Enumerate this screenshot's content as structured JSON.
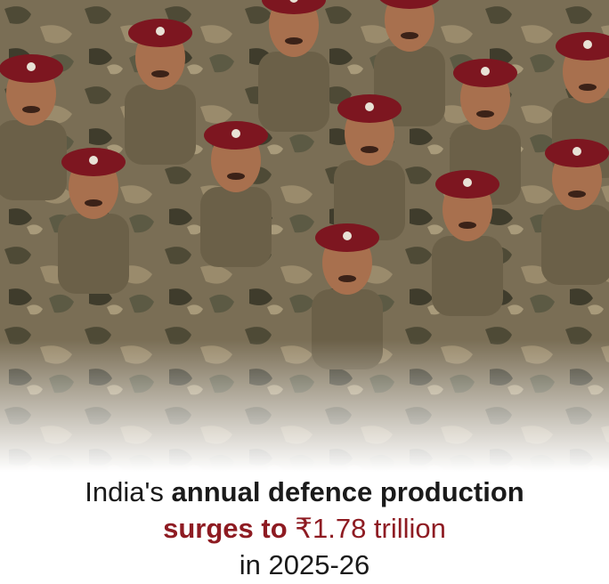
{
  "headline": {
    "line1": {
      "plain": "India's",
      "bold": "annual defence production"
    },
    "line2": {
      "bold": "surges to",
      "plain": "₹1.78 trillion"
    },
    "line3": "in 2025-26"
  }
}
